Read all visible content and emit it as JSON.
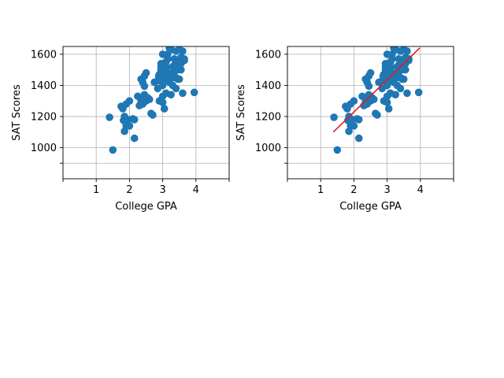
{
  "chart_data": [
    {
      "type": "scatter",
      "xlabel": "College GPA",
      "ylabel": "SAT Scores",
      "xlim": [
        0,
        5
      ],
      "ylim": [
        800,
        1650
      ],
      "x_ticks": [
        1,
        2,
        3,
        4
      ],
      "x_tick_labels": [
        "1",
        "2",
        "3",
        "4"
      ],
      "x_minor_ticks": [
        0,
        5
      ],
      "y_ticks": [
        1000,
        1200,
        1400,
        1600
      ],
      "y_tick_labels": [
        "1000",
        "1200",
        "1400",
        "1600"
      ],
      "y_minor_ticks": [
        900
      ],
      "grid": true,
      "point_color": "#1f77b4",
      "points": [
        [
          1.4,
          1195
        ],
        [
          1.5,
          985
        ],
        [
          1.75,
          1265
        ],
        [
          1.8,
          1250
        ],
        [
          1.85,
          1200
        ],
        [
          1.82,
          1175
        ],
        [
          1.9,
          1140
        ],
        [
          1.85,
          1105
        ],
        [
          1.95,
          1180
        ],
        [
          2.0,
          1300
        ],
        [
          2.0,
          1140
        ],
        [
          2.1,
          1185
        ],
        [
          2.15,
          1180
        ],
        [
          2.15,
          1060
        ],
        [
          1.9,
          1280
        ],
        [
          2.25,
          1330
        ],
        [
          2.3,
          1270
        ],
        [
          2.35,
          1300
        ],
        [
          2.4,
          1320
        ],
        [
          2.4,
          1280
        ],
        [
          2.45,
          1340
        ],
        [
          2.5,
          1300
        ],
        [
          2.55,
          1320
        ],
        [
          2.45,
          1395
        ],
        [
          2.4,
          1420
        ],
        [
          2.35,
          1440
        ],
        [
          2.45,
          1460
        ],
        [
          2.5,
          1480
        ],
        [
          2.6,
          1310
        ],
        [
          2.65,
          1220
        ],
        [
          2.7,
          1210
        ],
        [
          2.75,
          1420
        ],
        [
          2.85,
          1380
        ],
        [
          2.9,
          1440
        ],
        [
          2.9,
          1470
        ],
        [
          2.95,
          1500
        ],
        [
          2.95,
          1520
        ],
        [
          2.95,
          1300
        ],
        [
          3.0,
          1290
        ],
        [
          2.9,
          1300
        ],
        [
          3.05,
          1250
        ],
        [
          3.0,
          1400
        ],
        [
          3.0,
          1330
        ],
        [
          3.1,
          1350
        ],
        [
          3.05,
          1450
        ],
        [
          3.1,
          1500
        ],
        [
          3.1,
          1550
        ],
        [
          3.15,
          1570
        ],
        [
          3.15,
          1600
        ],
        [
          3.2,
          1640
        ],
        [
          3.25,
          1630
        ],
        [
          3.2,
          1420
        ],
        [
          3.25,
          1340
        ],
        [
          3.3,
          1400
        ],
        [
          3.3,
          1450
        ],
        [
          3.3,
          1480
        ],
        [
          3.35,
          1500
        ],
        [
          3.35,
          1530
        ],
        [
          3.35,
          1570
        ],
        [
          3.4,
          1620
        ],
        [
          3.4,
          1450
        ],
        [
          3.4,
          1380
        ],
        [
          3.45,
          1500
        ],
        [
          3.45,
          1550
        ],
        [
          3.5,
          1440
        ],
        [
          3.5,
          1520
        ],
        [
          3.55,
          1540
        ],
        [
          3.55,
          1580
        ],
        [
          3.6,
          1350
        ],
        [
          3.6,
          1620
        ],
        [
          3.65,
          1560
        ],
        [
          3.65,
          1570
        ],
        [
          2.85,
          1430
        ],
        [
          2.88,
          1460
        ],
        [
          3.0,
          1430
        ],
        [
          3.05,
          1480
        ],
        [
          3.15,
          1480
        ],
        [
          3.2,
          1440
        ],
        [
          3.25,
          1470
        ],
        [
          3.3,
          1520
        ],
        [
          3.4,
          1510
        ],
        [
          3.45,
          1440
        ],
        [
          3.0,
          1600
        ],
        [
          3.5,
          1630
        ],
        [
          3.95,
          1355
        ],
        [
          3.55,
          1500
        ],
        [
          3.5,
          1560
        ],
        [
          2.95,
          1540
        ],
        [
          3.1,
          1520
        ],
        [
          3.35,
          1460
        ]
      ]
    },
    {
      "type": "scatter",
      "xlabel": "College GPA",
      "ylabel": "SAT Scores",
      "xlim": [
        0,
        5
      ],
      "ylim": [
        800,
        1650
      ],
      "x_ticks": [
        1,
        2,
        3,
        4
      ],
      "x_tick_labels": [
        "1",
        "2",
        "3",
        "4"
      ],
      "x_minor_ticks": [
        0,
        5
      ],
      "y_ticks": [
        1000,
        1200,
        1400,
        1600
      ],
      "y_tick_labels": [
        "1000",
        "1200",
        "1400",
        "1600"
      ],
      "y_minor_ticks": [
        900
      ],
      "grid": true,
      "point_color": "#1f77b4",
      "fit_line": {
        "color": "#e41a1c",
        "x": [
          1.38,
          3.98
        ],
        "y": [
          1100,
          1640
        ]
      },
      "points": [
        [
          1.4,
          1195
        ],
        [
          1.5,
          985
        ],
        [
          1.75,
          1265
        ],
        [
          1.8,
          1250
        ],
        [
          1.85,
          1200
        ],
        [
          1.82,
          1175
        ],
        [
          1.9,
          1140
        ],
        [
          1.85,
          1105
        ],
        [
          1.95,
          1180
        ],
        [
          2.0,
          1300
        ],
        [
          2.0,
          1140
        ],
        [
          2.1,
          1185
        ],
        [
          2.15,
          1180
        ],
        [
          2.15,
          1060
        ],
        [
          1.9,
          1280
        ],
        [
          2.25,
          1330
        ],
        [
          2.3,
          1270
        ],
        [
          2.35,
          1300
        ],
        [
          2.4,
          1320
        ],
        [
          2.4,
          1280
        ],
        [
          2.45,
          1340
        ],
        [
          2.5,
          1300
        ],
        [
          2.55,
          1320
        ],
        [
          2.45,
          1395
        ],
        [
          2.4,
          1420
        ],
        [
          2.35,
          1440
        ],
        [
          2.45,
          1460
        ],
        [
          2.5,
          1480
        ],
        [
          2.6,
          1310
        ],
        [
          2.65,
          1220
        ],
        [
          2.7,
          1210
        ],
        [
          2.75,
          1420
        ],
        [
          2.85,
          1380
        ],
        [
          2.9,
          1440
        ],
        [
          2.9,
          1470
        ],
        [
          2.95,
          1500
        ],
        [
          2.95,
          1520
        ],
        [
          2.95,
          1300
        ],
        [
          3.0,
          1290
        ],
        [
          2.9,
          1300
        ],
        [
          3.05,
          1250
        ],
        [
          3.0,
          1400
        ],
        [
          3.0,
          1330
        ],
        [
          3.1,
          1350
        ],
        [
          3.05,
          1450
        ],
        [
          3.1,
          1500
        ],
        [
          3.1,
          1550
        ],
        [
          3.15,
          1570
        ],
        [
          3.15,
          1600
        ],
        [
          3.2,
          1640
        ],
        [
          3.25,
          1630
        ],
        [
          3.2,
          1420
        ],
        [
          3.25,
          1340
        ],
        [
          3.3,
          1400
        ],
        [
          3.3,
          1450
        ],
        [
          3.3,
          1480
        ],
        [
          3.35,
          1500
        ],
        [
          3.35,
          1530
        ],
        [
          3.35,
          1570
        ],
        [
          3.4,
          1620
        ],
        [
          3.4,
          1450
        ],
        [
          3.4,
          1380
        ],
        [
          3.45,
          1500
        ],
        [
          3.45,
          1550
        ],
        [
          3.5,
          1440
        ],
        [
          3.5,
          1520
        ],
        [
          3.55,
          1540
        ],
        [
          3.55,
          1580
        ],
        [
          3.6,
          1350
        ],
        [
          3.6,
          1620
        ],
        [
          3.65,
          1560
        ],
        [
          3.65,
          1570
        ],
        [
          2.85,
          1430
        ],
        [
          2.88,
          1460
        ],
        [
          3.0,
          1430
        ],
        [
          3.05,
          1480
        ],
        [
          3.15,
          1480
        ],
        [
          3.2,
          1440
        ],
        [
          3.25,
          1470
        ],
        [
          3.3,
          1520
        ],
        [
          3.4,
          1510
        ],
        [
          3.45,
          1440
        ],
        [
          3.0,
          1600
        ],
        [
          3.5,
          1630
        ],
        [
          3.95,
          1355
        ],
        [
          3.55,
          1500
        ],
        [
          3.5,
          1560
        ],
        [
          2.95,
          1540
        ],
        [
          3.1,
          1520
        ],
        [
          3.35,
          1460
        ]
      ]
    }
  ]
}
